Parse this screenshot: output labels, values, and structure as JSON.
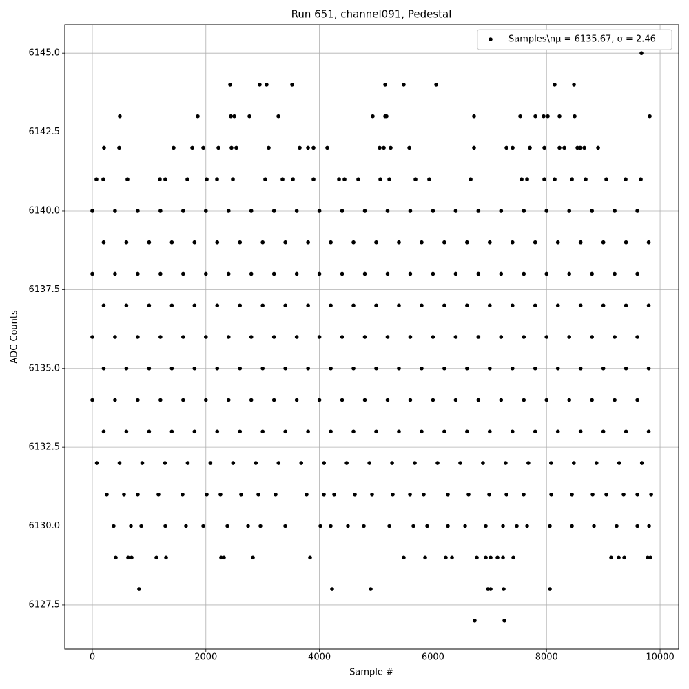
{
  "chart_data": {
    "type": "scatter",
    "title": "Run 651, channel091, Pedestal",
    "x_label": "Sample #",
    "y_label": "ADC Counts",
    "xlim": [
      -485,
      10327
    ],
    "ylim": [
      6126.1,
      6145.9
    ],
    "xticks": [
      0,
      2000,
      4000,
      6000,
      8000,
      10000
    ],
    "yticks": [
      6127.5,
      {
        "value": 6130,
        "label": "6130.0"
      },
      6132.5,
      {
        "value": 6135,
        "label": "6135.0"
      },
      6137.5,
      {
        "value": 6140,
        "label": "6140.0"
      },
      6142.5,
      {
        "value": 6145,
        "label": "6145.0"
      }
    ],
    "grid": true,
    "legend": "upper right",
    "series": [
      {
        "name": "Samples\\nμ = 6135.67, σ = 2.46",
        "color": "#000000",
        "x": [
          9672,
          2427,
          2949,
          3070,
          3519,
          5158,
          5485,
          6056,
          8143,
          8483,
          485,
          1857,
          2439,
          2500,
          2767,
          3277,
          4939,
          5158,
          5182,
          6723,
          7536,
          7803,
          7949,
          8022,
          8228,
          8495,
          9818,
          206,
          473,
          1432,
          1760,
          1954,
          2221,
          2451,
          2536,
          3107,
          3653,
          3799,
          3896,
          4138,
          5061,
          5134,
          5255,
          5583,
          6723,
          7294,
          7403,
          7706,
          7961,
          8228,
          8313,
          8544,
          8592,
          8665,
          8908,
          73,
          194,
          619,
          1189,
          1286,
          1675,
          2015,
          2197,
          2476,
          3046,
          3350,
          3532,
          3896,
          4345,
          4442,
          4684,
          5073,
          5231,
          5692,
          5934,
          6663,
          7561,
          7658,
          7961,
          8143,
          8447,
          8689,
          9053,
          9393,
          9660,
          0,
          400,
          800,
          1200,
          1600,
          2000,
          2400,
          2800,
          3200,
          3600,
          4000,
          4400,
          4800,
          5200,
          5600,
          6000,
          6400,
          6800,
          7200,
          7600,
          8000,
          8400,
          8800,
          9200,
          9600,
          200,
          600,
          1000,
          1400,
          1800,
          2200,
          2600,
          3000,
          3400,
          3800,
          4200,
          4600,
          5000,
          5400,
          5800,
          6200,
          6600,
          7000,
          7400,
          7800,
          8200,
          8600,
          9000,
          9400,
          9800,
          0,
          400,
          800,
          1200,
          1600,
          2000,
          2400,
          2800,
          3200,
          3600,
          4000,
          4400,
          4800,
          5200,
          5600,
          6000,
          6400,
          6800,
          7200,
          7600,
          8000,
          8400,
          8800,
          9200,
          9600,
          200,
          600,
          1000,
          1400,
          1800,
          2200,
          2600,
          3000,
          3400,
          3800,
          4200,
          4600,
          5000,
          5400,
          5800,
          6200,
          6600,
          7000,
          7400,
          7800,
          8200,
          8600,
          9000,
          9400,
          9800,
          0,
          400,
          800,
          1200,
          1600,
          2000,
          2400,
          2800,
          3200,
          3600,
          4000,
          4400,
          4800,
          5200,
          5600,
          6000,
          6400,
          6800,
          7200,
          7600,
          8000,
          8400,
          8800,
          9200,
          9600,
          200,
          600,
          1000,
          1400,
          1800,
          2200,
          2600,
          3000,
          3400,
          3800,
          4200,
          4600,
          5000,
          5400,
          5800,
          6200,
          6600,
          7000,
          7400,
          7800,
          8200,
          8600,
          9000,
          9400,
          9800,
          0,
          400,
          800,
          1200,
          1600,
          2000,
          2400,
          2800,
          3200,
          3600,
          4000,
          4400,
          4800,
          5200,
          5600,
          6000,
          6400,
          6800,
          7200,
          7600,
          8000,
          8400,
          8800,
          9200,
          9600,
          200,
          600,
          1000,
          1400,
          1800,
          2200,
          2600,
          3000,
          3400,
          3800,
          4200,
          4600,
          5000,
          5400,
          5800,
          6200,
          6600,
          7000,
          7400,
          7800,
          8200,
          8600,
          9000,
          9400,
          9800,
          80,
          480,
          880,
          1280,
          1680,
          2080,
          2480,
          2880,
          3280,
          3680,
          4080,
          4480,
          4880,
          5280,
          5680,
          6080,
          6480,
          6880,
          7280,
          7680,
          8080,
          8480,
          8880,
          9280,
          9680,
          255,
          558,
          801,
          1165,
          1590,
          2015,
          2257,
          2621,
          2925,
          3228,
          3774,
          4078,
          4260,
          4624,
          4927,
          5291,
          5595,
          5837,
          6262,
          6626,
          6990,
          7294,
          7597,
          8083,
          8447,
          8811,
          9053,
          9357,
          9600,
          9843,
          376,
          680,
          862,
          1286,
          1650,
          1954,
          2379,
          2743,
          2961,
          3398,
          4017,
          4199,
          4502,
          4782,
          5231,
          5655,
          5898,
          6262,
          6566,
          6930,
          7233,
          7476,
          7658,
          8058,
          8447,
          8835,
          9235,
          9600,
          9806,
          413,
          631,
          692,
          1129,
          1299,
          2269,
          2318,
          2828,
          3835,
          5485,
          5862,
          6225,
          6335,
          6772,
          6930,
          7015,
          7136,
          7233,
          7415,
          9138,
          9272,
          9369,
          9782,
          9830,
          825,
          4223,
          4903,
          6966,
          7015,
          7245,
          8058,
          6735,
          7257
        ],
        "values": [
          6145,
          6144,
          6144,
          6144,
          6144,
          6144,
          6144,
          6144,
          6144,
          6144,
          6143,
          6143,
          6143,
          6143,
          6143,
          6143,
          6143,
          6143,
          6143,
          6143,
          6143,
          6143,
          6143,
          6143,
          6143,
          6143,
          6143,
          6142,
          6142,
          6142,
          6142,
          6142,
          6142,
          6142,
          6142,
          6142,
          6142,
          6142,
          6142,
          6142,
          6142,
          6142,
          6142,
          6142,
          6142,
          6142,
          6142,
          6142,
          6142,
          6142,
          6142,
          6142,
          6142,
          6142,
          6142,
          6141,
          6141,
          6141,
          6141,
          6141,
          6141,
          6141,
          6141,
          6141,
          6141,
          6141,
          6141,
          6141,
          6141,
          6141,
          6141,
          6141,
          6141,
          6141,
          6141,
          6141,
          6141,
          6141,
          6141,
          6141,
          6141,
          6141,
          6141,
          6141,
          6141,
          6140,
          6140,
          6140,
          6140,
          6140,
          6140,
          6140,
          6140,
          6140,
          6140,
          6140,
          6140,
          6140,
          6140,
          6140,
          6140,
          6140,
          6140,
          6140,
          6140,
          6140,
          6140,
          6140,
          6140,
          6140,
          6139,
          6139,
          6139,
          6139,
          6139,
          6139,
          6139,
          6139,
          6139,
          6139,
          6139,
          6139,
          6139,
          6139,
          6139,
          6139,
          6139,
          6139,
          6139,
          6139,
          6139,
          6139,
          6139,
          6139,
          6139,
          6138,
          6138,
          6138,
          6138,
          6138,
          6138,
          6138,
          6138,
          6138,
          6138,
          6138,
          6138,
          6138,
          6138,
          6138,
          6138,
          6138,
          6138,
          6138,
          6138,
          6138,
          6138,
          6138,
          6138,
          6138,
          6137,
          6137,
          6137,
          6137,
          6137,
          6137,
          6137,
          6137,
          6137,
          6137,
          6137,
          6137,
          6137,
          6137,
          6137,
          6137,
          6137,
          6137,
          6137,
          6137,
          6137,
          6137,
          6137,
          6137,
          6137,
          6136,
          6136,
          6136,
          6136,
          6136,
          6136,
          6136,
          6136,
          6136,
          6136,
          6136,
          6136,
          6136,
          6136,
          6136,
          6136,
          6136,
          6136,
          6136,
          6136,
          6136,
          6136,
          6136,
          6136,
          6136,
          6135,
          6135,
          6135,
          6135,
          6135,
          6135,
          6135,
          6135,
          6135,
          6135,
          6135,
          6135,
          6135,
          6135,
          6135,
          6135,
          6135,
          6135,
          6135,
          6135,
          6135,
          6135,
          6135,
          6135,
          6135,
          6134,
          6134,
          6134,
          6134,
          6134,
          6134,
          6134,
          6134,
          6134,
          6134,
          6134,
          6134,
          6134,
          6134,
          6134,
          6134,
          6134,
          6134,
          6134,
          6134,
          6134,
          6134,
          6134,
          6134,
          6134,
          6133,
          6133,
          6133,
          6133,
          6133,
          6133,
          6133,
          6133,
          6133,
          6133,
          6133,
          6133,
          6133,
          6133,
          6133,
          6133,
          6133,
          6133,
          6133,
          6133,
          6133,
          6133,
          6133,
          6133,
          6133,
          6132,
          6132,
          6132,
          6132,
          6132,
          6132,
          6132,
          6132,
          6132,
          6132,
          6132,
          6132,
          6132,
          6132,
          6132,
          6132,
          6132,
          6132,
          6132,
          6132,
          6132,
          6132,
          6132,
          6132,
          6132,
          6131,
          6131,
          6131,
          6131,
          6131,
          6131,
          6131,
          6131,
          6131,
          6131,
          6131,
          6131,
          6131,
          6131,
          6131,
          6131,
          6131,
          6131,
          6131,
          6131,
          6131,
          6131,
          6131,
          6131,
          6131,
          6131,
          6131,
          6131,
          6131,
          6131,
          6130,
          6130,
          6130,
          6130,
          6130,
          6130,
          6130,
          6130,
          6130,
          6130,
          6130,
          6130,
          6130,
          6130,
          6130,
          6130,
          6130,
          6130,
          6130,
          6130,
          6130,
          6130,
          6130,
          6130,
          6130,
          6130,
          6130,
          6130,
          6130,
          6129,
          6129,
          6129,
          6129,
          6129,
          6129,
          6129,
          6129,
          6129,
          6129,
          6129,
          6129,
          6129,
          6129,
          6129,
          6129,
          6129,
          6129,
          6129,
          6129,
          6129,
          6129,
          6129,
          6129,
          6128,
          6128,
          6128,
          6128,
          6128,
          6128,
          6128,
          6127,
          6127
        ]
      }
    ]
  }
}
